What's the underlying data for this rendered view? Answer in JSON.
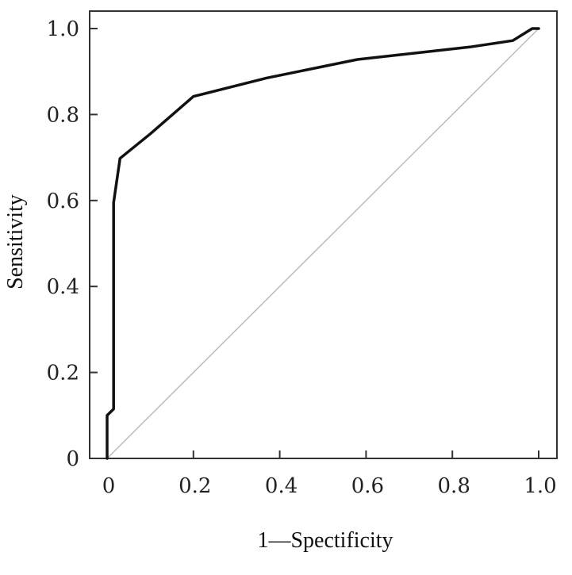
{
  "chart_data": {
    "type": "line",
    "title": "",
    "xlabel": "1—Spectificity",
    "ylabel": "Sensitivity",
    "xlim": [
      0,
      1
    ],
    "ylim": [
      0,
      1
    ],
    "grid": false,
    "x_ticks": [
      0,
      0.2,
      0.4,
      0.6,
      0.8,
      1.0
    ],
    "x_tick_labels": [
      "0",
      "0.2",
      "0.4",
      "0.6",
      "0.8",
      "1.0"
    ],
    "y_ticks": [
      0,
      0.2,
      0.4,
      0.6,
      0.8,
      1.0
    ],
    "y_tick_labels": [
      "0",
      "0.2",
      "0.4",
      "0.6",
      "0.8",
      "1.0"
    ],
    "series": [
      {
        "color": "#111111",
        "points": [
          [
            0.0,
            0.0
          ],
          [
            0.0,
            0.1
          ],
          [
            0.015,
            0.115
          ],
          [
            0.015,
            0.595
          ],
          [
            0.03,
            0.698
          ],
          [
            0.1,
            0.755
          ],
          [
            0.2,
            0.842
          ],
          [
            0.37,
            0.885
          ],
          [
            0.58,
            0.928
          ],
          [
            0.84,
            0.957
          ],
          [
            0.94,
            0.972
          ],
          [
            0.985,
            1.0
          ],
          [
            1.0,
            1.0
          ]
        ]
      },
      {
        "color": "#bbbbbb",
        "points": [
          [
            0.0,
            0.0
          ],
          [
            1.0,
            1.0
          ]
        ]
      }
    ]
  }
}
